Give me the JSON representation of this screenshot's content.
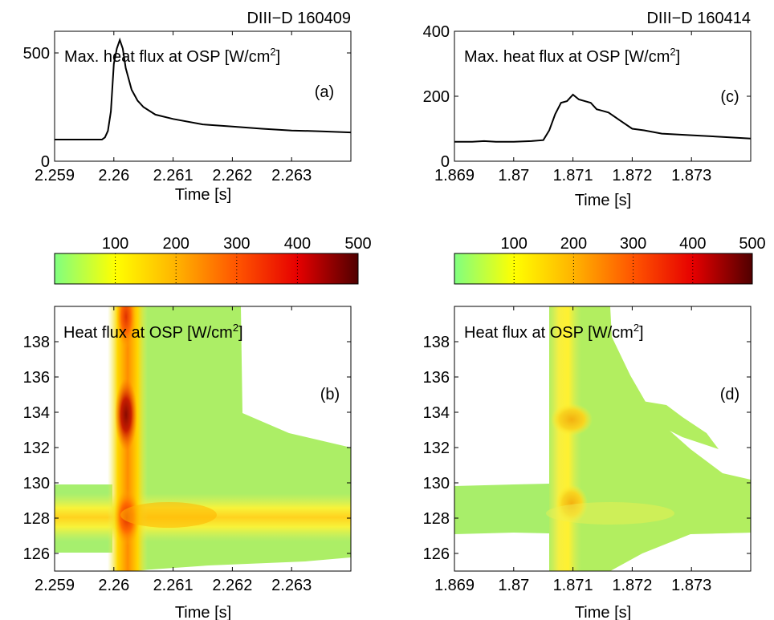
{
  "chart_data": [
    {
      "panel_label": "(a)",
      "type": "line",
      "header": "DIII−D 160409",
      "title": "Max. heat flux at OSP [W/cm",
      "title_sup": "2",
      "title_close": "]",
      "xlabel": "Time [s]",
      "xlim": [
        2.259,
        2.264
      ],
      "ylim": [
        0,
        600
      ],
      "xticks": [
        2.259,
        2.26,
        2.261,
        2.262,
        2.263
      ],
      "xtick_labels": [
        "2.259",
        "2.26",
        "2.261",
        "2.262",
        "2.263"
      ],
      "yticks": [
        0,
        500
      ],
      "ytick_labels": [
        "0",
        "500"
      ],
      "series": [
        {
          "x": [
            2.259,
            2.2595,
            2.2598,
            2.25985,
            2.2599,
            2.25995,
            2.26,
            2.26005,
            2.2601,
            2.26015,
            2.2602,
            2.2603,
            2.2604,
            2.2605,
            2.2607,
            2.261,
            2.2615,
            2.262,
            2.2625,
            2.263,
            2.2635,
            2.264
          ],
          "y": [
            100,
            100,
            100,
            110,
            140,
            230,
            450,
            520,
            560,
            520,
            430,
            330,
            280,
            250,
            215,
            195,
            170,
            160,
            150,
            142,
            138,
            133
          ]
        }
      ]
    },
    {
      "panel_label": "(c)",
      "type": "line",
      "header": "DIII−D 160414",
      "title": "Max. heat flux at OSP [W/cm",
      "title_sup": "2",
      "title_close": "]",
      "xlabel": "Time [s]",
      "xlim": [
        1.869,
        1.874
      ],
      "ylim": [
        0,
        400
      ],
      "xticks": [
        1.869,
        1.87,
        1.871,
        1.872,
        1.873
      ],
      "xtick_labels": [
        "1.869",
        "1.87",
        "1.871",
        "1.872",
        "1.873"
      ],
      "yticks": [
        0,
        200,
        400
      ],
      "ytick_labels": [
        "0",
        "200",
        "400"
      ],
      "series": [
        {
          "x": [
            1.869,
            1.8693,
            1.8695,
            1.8697,
            1.87,
            1.8703,
            1.8705,
            1.8706,
            1.8707,
            1.8708,
            1.8709,
            1.871,
            1.8711,
            1.8712,
            1.8713,
            1.8714,
            1.8715,
            1.8716,
            1.8718,
            1.872,
            1.8722,
            1.8725,
            1.873,
            1.8735,
            1.874
          ],
          "y": [
            60,
            60,
            62,
            60,
            60,
            62,
            65,
            95,
            145,
            180,
            185,
            205,
            190,
            185,
            180,
            160,
            155,
            150,
            125,
            100,
            95,
            85,
            80,
            75,
            70
          ]
        }
      ]
    },
    {
      "panel_label": "(b)",
      "type": "heatmap",
      "title": "Heat flux at OSP [W/cm",
      "title_sup": "2",
      "title_close": "]",
      "xlabel": "Time [s]",
      "xlim": [
        2.259,
        2.264
      ],
      "ylim": [
        125,
        140
      ],
      "xticks": [
        2.259,
        2.26,
        2.261,
        2.262,
        2.263
      ],
      "xtick_labels": [
        "2.259",
        "2.26",
        "2.261",
        "2.262",
        "2.263"
      ],
      "yticks": [
        126,
        128,
        130,
        132,
        134,
        136,
        138
      ],
      "ytick_labels": [
        "126",
        "128",
        "130",
        "132",
        "134",
        "136",
        "138"
      ],
      "colorbar": {
        "range": [
          0,
          500
        ],
        "ticks": [
          100,
          200,
          300,
          400,
          500
        ],
        "tick_labels": [
          "100",
          "200",
          "300",
          "400",
          "500"
        ]
      }
    },
    {
      "panel_label": "(d)",
      "type": "heatmap",
      "title": "Heat flux at OSP [W/cm",
      "title_sup": "2",
      "title_close": "]",
      "xlabel": "Time [s]",
      "xlim": [
        1.869,
        1.874
      ],
      "ylim": [
        125,
        140
      ],
      "xticks": [
        1.869,
        1.87,
        1.871,
        1.872,
        1.873
      ],
      "xtick_labels": [
        "1.869",
        "1.87",
        "1.871",
        "1.872",
        "1.873"
      ],
      "yticks": [
        126,
        128,
        130,
        132,
        134,
        136,
        138
      ],
      "ytick_labels": [
        "126",
        "128",
        "130",
        "132",
        "134",
        "136",
        "138"
      ],
      "colorbar": {
        "range": [
          0,
          500
        ],
        "ticks": [
          100,
          200,
          300,
          400,
          500
        ],
        "tick_labels": [
          "100",
          "200",
          "300",
          "400",
          "500"
        ]
      }
    }
  ]
}
